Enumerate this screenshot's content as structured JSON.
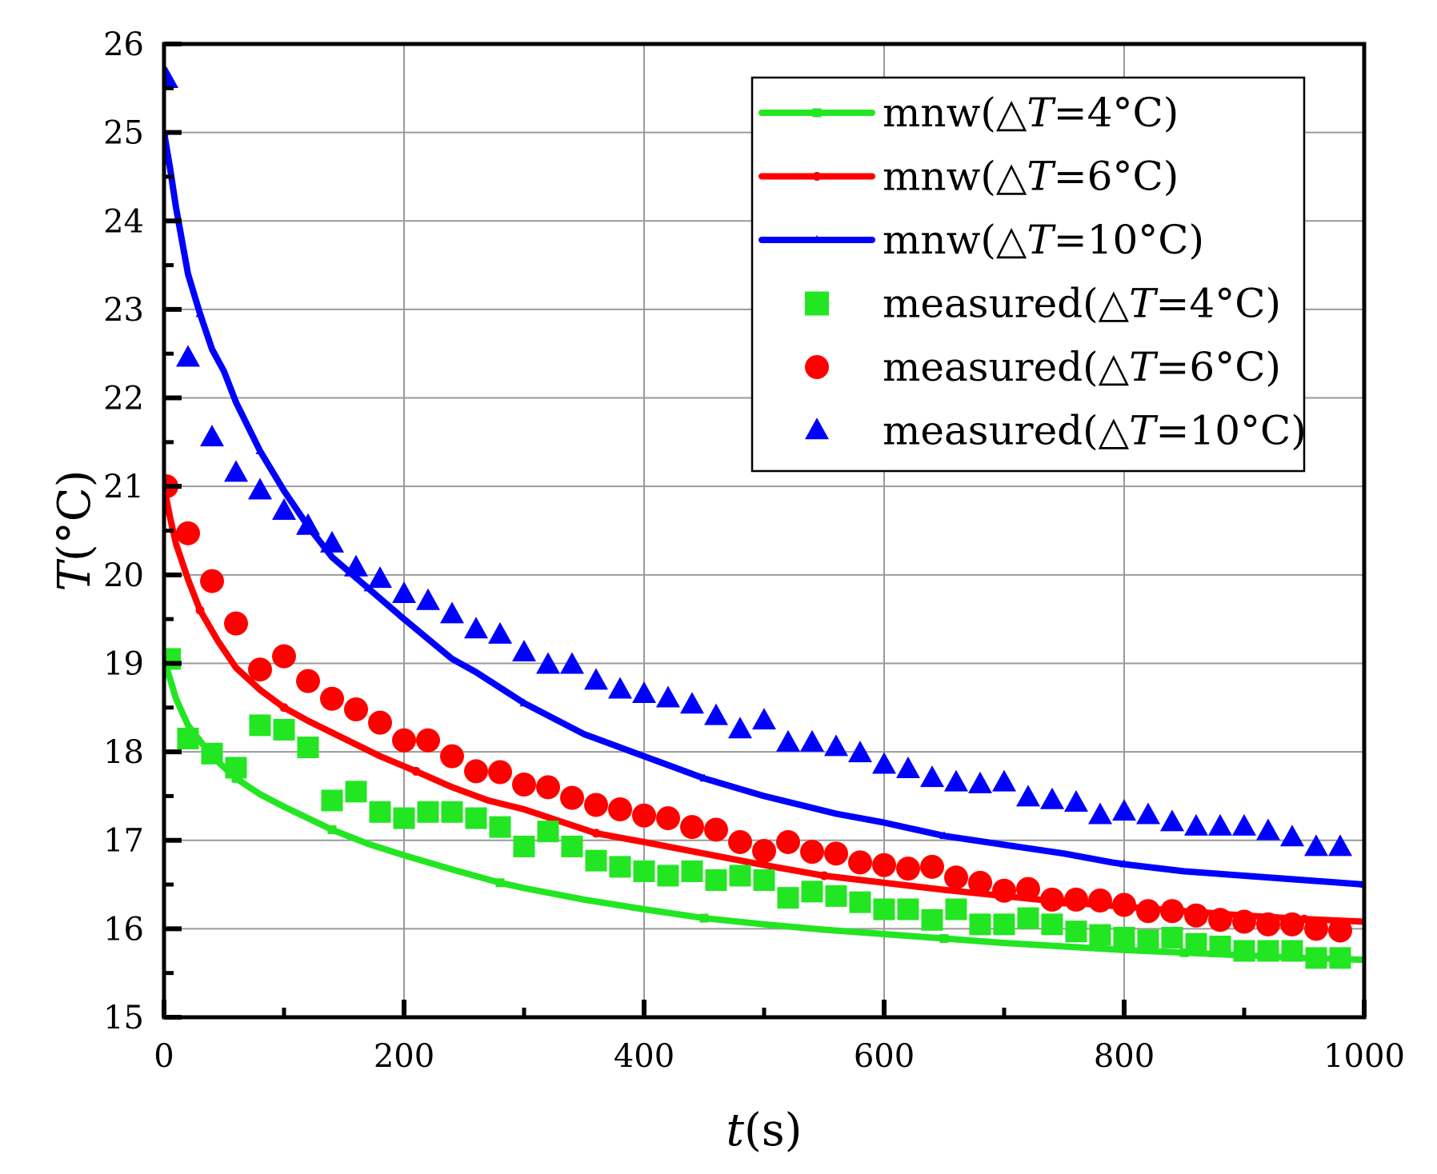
{
  "chart_data": {
    "type": "line",
    "title": "",
    "xlabel": {
      "var": "t",
      "unit": "(s)"
    },
    "ylabel": {
      "var": "T",
      "unit": "(°C)"
    },
    "xlim": [
      0,
      1000
    ],
    "ylim": [
      15,
      26
    ],
    "xticks": [
      0,
      200,
      400,
      600,
      800,
      1000
    ],
    "yticks": [
      15,
      16,
      17,
      18,
      19,
      20,
      21,
      22,
      23,
      24,
      25,
      26
    ],
    "grid": true,
    "legend_position": "top-right",
    "colors": {
      "green": "#22e622",
      "red": "#ff0000",
      "blue": "#0000ff"
    },
    "series": [
      {
        "name": "mnw(△T=4°C)",
        "label_prefix": "mnw(△",
        "label_var": "T",
        "label_suffix": "=4°C)",
        "kind": "line",
        "marker": "square",
        "color": "#22e622",
        "x": [
          0,
          10,
          20,
          40,
          60,
          80,
          100,
          120,
          140,
          170,
          200,
          240,
          280,
          300,
          350,
          400,
          450,
          500,
          550,
          600,
          650,
          700,
          750,
          800,
          850,
          900,
          950,
          1000
        ],
        "y": [
          19.05,
          18.6,
          18.3,
          17.95,
          17.7,
          17.52,
          17.38,
          17.25,
          17.12,
          16.96,
          16.83,
          16.67,
          16.52,
          16.46,
          16.33,
          16.22,
          16.12,
          16.05,
          15.99,
          15.94,
          15.89,
          15.84,
          15.8,
          15.76,
          15.73,
          15.7,
          15.67,
          15.65
        ]
      },
      {
        "name": "mnw(△T=6°C)",
        "label_prefix": "mnw(△",
        "label_var": "T",
        "label_suffix": "=6°C)",
        "kind": "line",
        "marker": "circle",
        "color": "#ff0000",
        "x": [
          0,
          5,
          10,
          20,
          30,
          45,
          60,
          80,
          100,
          120,
          150,
          180,
          210,
          240,
          270,
          300,
          360,
          400,
          450,
          500,
          550,
          600,
          650,
          700,
          750,
          800,
          850,
          900,
          950,
          1000
        ],
        "y": [
          21.0,
          20.65,
          20.35,
          19.95,
          19.6,
          19.25,
          18.95,
          18.7,
          18.5,
          18.35,
          18.15,
          17.95,
          17.78,
          17.6,
          17.45,
          17.35,
          17.08,
          16.98,
          16.85,
          16.72,
          16.6,
          16.52,
          16.44,
          16.37,
          16.3,
          16.25,
          16.2,
          16.15,
          16.11,
          16.08
        ]
      },
      {
        "name": "mnw(△T=10°C)",
        "label_prefix": "mnw(△",
        "label_var": "T",
        "label_suffix": "=10°C)",
        "kind": "line",
        "marker": "triangle",
        "color": "#0000ff",
        "x": [
          0,
          5,
          10,
          20,
          30,
          40,
          50,
          60,
          80,
          100,
          120,
          140,
          170,
          200,
          240,
          260,
          300,
          350,
          390,
          400,
          450,
          500,
          560,
          600,
          650,
          700,
          750,
          790,
          800,
          850,
          900,
          950,
          1000
        ],
        "y": [
          25.0,
          24.6,
          24.15,
          23.4,
          22.95,
          22.55,
          22.3,
          21.95,
          21.4,
          20.95,
          20.55,
          20.2,
          19.85,
          19.5,
          19.05,
          18.9,
          18.55,
          18.2,
          18.0,
          17.95,
          17.7,
          17.5,
          17.3,
          17.2,
          17.05,
          16.95,
          16.85,
          16.75,
          16.73,
          16.65,
          16.6,
          16.55,
          16.5
        ]
      },
      {
        "name": "measured(△T=4°C)",
        "label_prefix": "measured(△",
        "label_var": "T",
        "label_suffix": "=4°C)",
        "kind": "scatter",
        "marker": "square",
        "color": "#22e622",
        "x": [
          5,
          20,
          40,
          60,
          80,
          100,
          120,
          140,
          160,
          180,
          200,
          220,
          240,
          260,
          280,
          300,
          320,
          340,
          360,
          380,
          400,
          420,
          440,
          460,
          480,
          500,
          520,
          540,
          560,
          580,
          600,
          620,
          640,
          660,
          680,
          700,
          720,
          740,
          760,
          780,
          800,
          820,
          840,
          860,
          880,
          900,
          920,
          940,
          960,
          980
        ],
        "y": [
          19.05,
          18.15,
          17.98,
          17.82,
          18.3,
          18.25,
          18.05,
          17.45,
          17.55,
          17.32,
          17.25,
          17.32,
          17.32,
          17.25,
          17.15,
          16.93,
          17.1,
          16.93,
          16.77,
          16.7,
          16.65,
          16.6,
          16.65,
          16.55,
          16.6,
          16.55,
          16.35,
          16.42,
          16.37,
          16.3,
          16.22,
          16.22,
          16.1,
          16.22,
          16.05,
          16.05,
          16.12,
          16.05,
          15.97,
          15.93,
          15.9,
          15.87,
          15.9,
          15.83,
          15.8,
          15.75,
          15.75,
          15.75,
          15.67,
          15.67
        ]
      },
      {
        "name": "measured(△T=6°C)",
        "label_prefix": "measured(△",
        "label_var": "T",
        "label_suffix": "=6°C)",
        "kind": "scatter",
        "marker": "circle",
        "color": "#ff0000",
        "x": [
          2,
          20,
          40,
          60,
          80,
          100,
          120,
          140,
          160,
          180,
          200,
          220,
          240,
          260,
          280,
          300,
          320,
          340,
          360,
          380,
          400,
          420,
          440,
          460,
          480,
          500,
          520,
          540,
          560,
          580,
          600,
          620,
          640,
          660,
          680,
          700,
          720,
          740,
          760,
          780,
          800,
          820,
          840,
          860,
          880,
          900,
          920,
          940,
          960,
          980
        ],
        "y": [
          21.0,
          20.47,
          19.93,
          19.45,
          18.93,
          19.08,
          18.8,
          18.6,
          18.48,
          18.33,
          18.13,
          18.13,
          17.95,
          17.78,
          17.77,
          17.63,
          17.6,
          17.48,
          17.4,
          17.35,
          17.28,
          17.25,
          17.15,
          17.12,
          16.98,
          16.88,
          16.98,
          16.87,
          16.85,
          16.75,
          16.72,
          16.68,
          16.7,
          16.58,
          16.52,
          16.43,
          16.45,
          16.33,
          16.33,
          16.32,
          16.27,
          16.2,
          16.2,
          16.15,
          16.1,
          16.08,
          16.05,
          16.05,
          16.0,
          15.98
        ]
      },
      {
        "name": "measured(△T=10°C)",
        "label_prefix": "measured(△",
        "label_var": "T",
        "label_suffix": "=10°C)",
        "kind": "scatter",
        "marker": "triangle",
        "color": "#0000ff",
        "x": [
          2,
          20,
          40,
          60,
          80,
          100,
          120,
          140,
          160,
          180,
          200,
          220,
          240,
          260,
          280,
          300,
          320,
          340,
          360,
          380,
          400,
          420,
          440,
          460,
          480,
          500,
          520,
          540,
          560,
          580,
          600,
          620,
          640,
          660,
          680,
          700,
          720,
          740,
          760,
          780,
          800,
          820,
          840,
          860,
          880,
          900,
          920,
          940,
          960,
          980
        ],
        "y": [
          25.6,
          22.45,
          21.55,
          21.15,
          20.95,
          20.72,
          20.55,
          20.35,
          20.08,
          19.95,
          19.78,
          19.7,
          19.55,
          19.38,
          19.32,
          19.12,
          18.98,
          18.98,
          18.8,
          18.7,
          18.65,
          18.6,
          18.53,
          18.4,
          18.25,
          18.35,
          18.1,
          18.1,
          18.05,
          17.98,
          17.85,
          17.8,
          17.7,
          17.65,
          17.63,
          17.65,
          17.48,
          17.45,
          17.42,
          17.28,
          17.32,
          17.28,
          17.2,
          17.15,
          17.15,
          17.15,
          17.1,
          17.03,
          16.92,
          16.92
        ]
      }
    ]
  }
}
